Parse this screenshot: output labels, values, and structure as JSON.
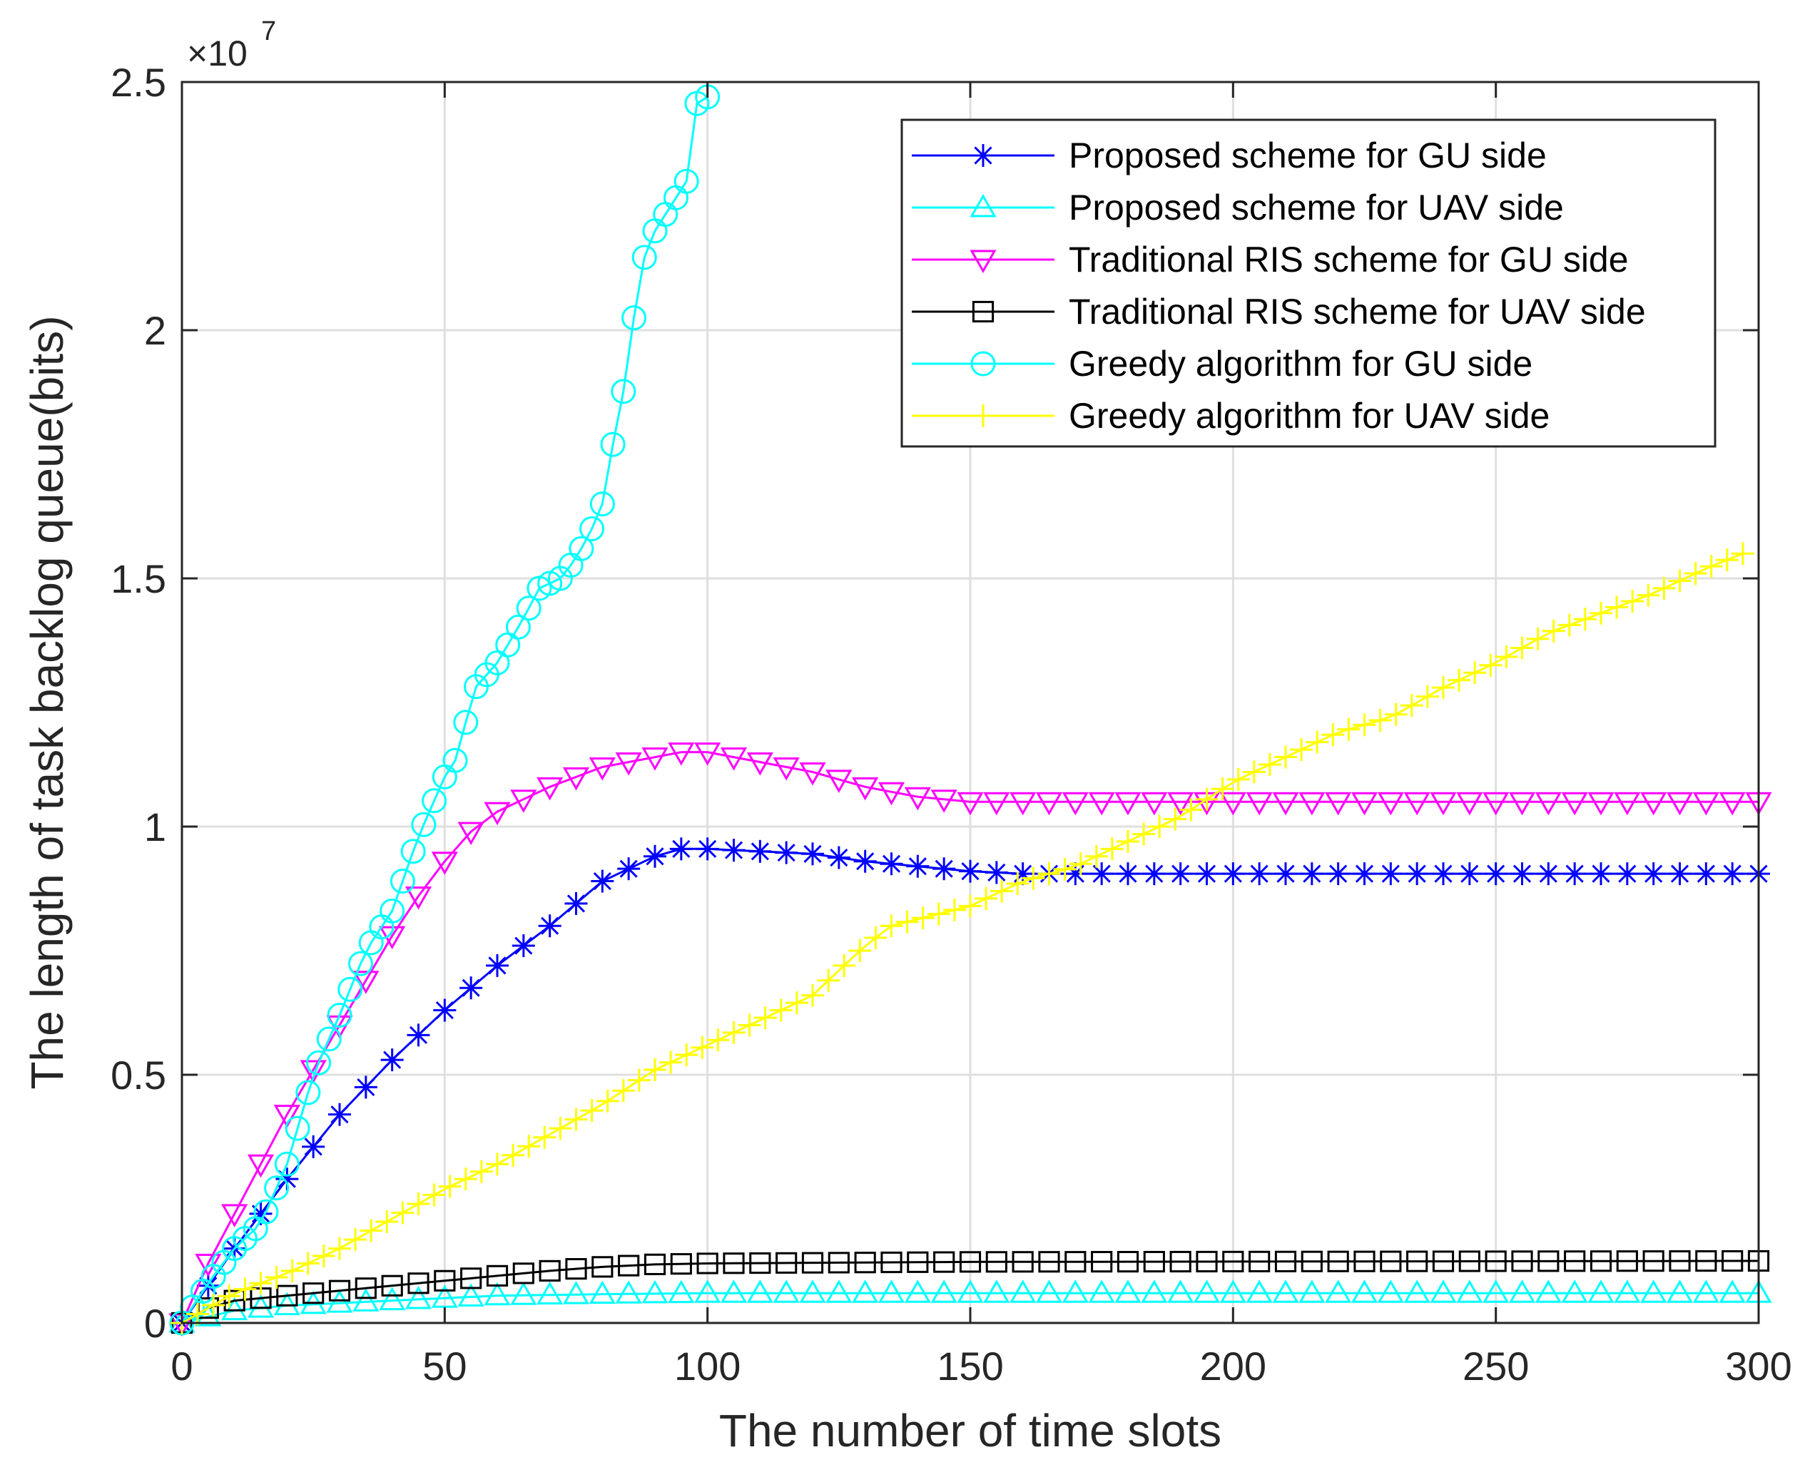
{
  "chart_data": {
    "type": "line",
    "title": "",
    "xlabel": "The number of time slots",
    "ylabel": "The length of task backlog queue(bits)",
    "xlim": [
      0,
      300
    ],
    "ylim": [
      0,
      2.5
    ],
    "y_scale_label": {
      "base": "×10",
      "exponent": "7"
    },
    "xticks": [
      "0",
      "50",
      "100",
      "150",
      "200",
      "250",
      "300"
    ],
    "yticks": [
      "0",
      "0.5",
      "1",
      "1.5",
      "2",
      "2.5"
    ],
    "grid": true,
    "legend_position": "top-right",
    "series": [
      {
        "name": "Proposed scheme for GU side",
        "color": "#0000ff",
        "marker": "asterisk",
        "step": 5,
        "x_end": 300,
        "points": [
          [
            0,
            0
          ],
          [
            10,
            0.15
          ],
          [
            20,
            0.29
          ],
          [
            30,
            0.42
          ],
          [
            40,
            0.53
          ],
          [
            50,
            0.63
          ],
          [
            60,
            0.72
          ],
          [
            70,
            0.8
          ],
          [
            80,
            0.89
          ],
          [
            90,
            0.94
          ],
          [
            95,
            0.955
          ],
          [
            100,
            0.955
          ],
          [
            110,
            0.95
          ],
          [
            120,
            0.945
          ],
          [
            130,
            0.93
          ],
          [
            140,
            0.92
          ],
          [
            150,
            0.91
          ],
          [
            160,
            0.905
          ],
          [
            300,
            0.905
          ]
        ]
      },
      {
        "name": "Proposed scheme for UAV side",
        "color": "#00ffff",
        "marker": "triangle-up",
        "step": 5,
        "x_end": 300,
        "points": [
          [
            0,
            0
          ],
          [
            10,
            0.025
          ],
          [
            20,
            0.035
          ],
          [
            30,
            0.04
          ],
          [
            40,
            0.045
          ],
          [
            50,
            0.05
          ],
          [
            60,
            0.055
          ],
          [
            80,
            0.058
          ],
          [
            100,
            0.06
          ],
          [
            300,
            0.06
          ]
        ]
      },
      {
        "name": "Traditional RIS scheme for GU side",
        "color": "#ff00ff",
        "marker": "triangle-down",
        "step": 5,
        "x_end": 300,
        "points": [
          [
            0,
            0
          ],
          [
            5,
            0.12
          ],
          [
            10,
            0.22
          ],
          [
            20,
            0.42
          ],
          [
            30,
            0.6
          ],
          [
            40,
            0.78
          ],
          [
            45,
            0.86
          ],
          [
            50,
            0.93
          ],
          [
            55,
            0.99
          ],
          [
            60,
            1.03
          ],
          [
            70,
            1.08
          ],
          [
            80,
            1.12
          ],
          [
            90,
            1.14
          ],
          [
            95,
            1.15
          ],
          [
            100,
            1.15
          ],
          [
            110,
            1.13
          ],
          [
            120,
            1.11
          ],
          [
            130,
            1.08
          ],
          [
            140,
            1.06
          ],
          [
            150,
            1.05
          ],
          [
            300,
            1.05
          ]
        ]
      },
      {
        "name": "Traditional RIS scheme for UAV side",
        "color": "#000000",
        "marker": "square",
        "step": 5,
        "x_end": 300,
        "points": [
          [
            0,
            0
          ],
          [
            5,
            0.03
          ],
          [
            10,
            0.045
          ],
          [
            20,
            0.055
          ],
          [
            30,
            0.065
          ],
          [
            40,
            0.075
          ],
          [
            50,
            0.085
          ],
          [
            60,
            0.095
          ],
          [
            70,
            0.105
          ],
          [
            80,
            0.113
          ],
          [
            90,
            0.118
          ],
          [
            100,
            0.12
          ],
          [
            150,
            0.123
          ],
          [
            300,
            0.125
          ]
        ]
      },
      {
        "name": "Greedy algorithm for GU side",
        "color": "#00ffff",
        "marker": "circle",
        "step": 2,
        "x_end": 100,
        "points": [
          [
            0,
            0
          ],
          [
            5,
            0.08
          ],
          [
            10,
            0.15
          ],
          [
            15,
            0.2
          ],
          [
            20,
            0.32
          ],
          [
            25,
            0.5
          ],
          [
            30,
            0.62
          ],
          [
            35,
            0.75
          ],
          [
            40,
            0.83
          ],
          [
            45,
            0.98
          ],
          [
            50,
            1.1
          ],
          [
            53,
            1.15
          ],
          [
            55,
            1.27
          ],
          [
            60,
            1.33
          ],
          [
            65,
            1.42
          ],
          [
            68,
            1.48
          ],
          [
            72,
            1.5
          ],
          [
            75,
            1.54
          ],
          [
            78,
            1.6
          ],
          [
            80,
            1.65
          ],
          [
            82,
            1.77
          ],
          [
            85,
            1.93
          ],
          [
            87,
            2.12
          ],
          [
            90,
            2.2
          ],
          [
            93,
            2.25
          ],
          [
            96,
            2.3
          ],
          [
            97,
            2.45
          ],
          [
            100,
            2.47
          ]
        ]
      },
      {
        "name": "Greedy algorithm for UAV side",
        "color": "#ffff00",
        "marker": "plus",
        "step": 3,
        "x_end": 297,
        "points": [
          [
            0,
            0
          ],
          [
            10,
            0.06
          ],
          [
            20,
            0.1
          ],
          [
            30,
            0.15
          ],
          [
            40,
            0.21
          ],
          [
            50,
            0.27
          ],
          [
            60,
            0.32
          ],
          [
            70,
            0.38
          ],
          [
            80,
            0.44
          ],
          [
            90,
            0.51
          ],
          [
            100,
            0.56
          ],
          [
            110,
            0.61
          ],
          [
            120,
            0.66
          ],
          [
            130,
            0.76
          ],
          [
            135,
            0.8
          ],
          [
            150,
            0.84
          ],
          [
            160,
            0.89
          ],
          [
            170,
            0.92
          ],
          [
            180,
            0.97
          ],
          [
            190,
            1.02
          ],
          [
            200,
            1.09
          ],
          [
            210,
            1.14
          ],
          [
            220,
            1.19
          ],
          [
            230,
            1.22
          ],
          [
            240,
            1.28
          ],
          [
            250,
            1.33
          ],
          [
            260,
            1.39
          ],
          [
            270,
            1.43
          ],
          [
            280,
            1.47
          ],
          [
            290,
            1.52
          ],
          [
            297,
            1.55
          ]
        ]
      }
    ]
  }
}
